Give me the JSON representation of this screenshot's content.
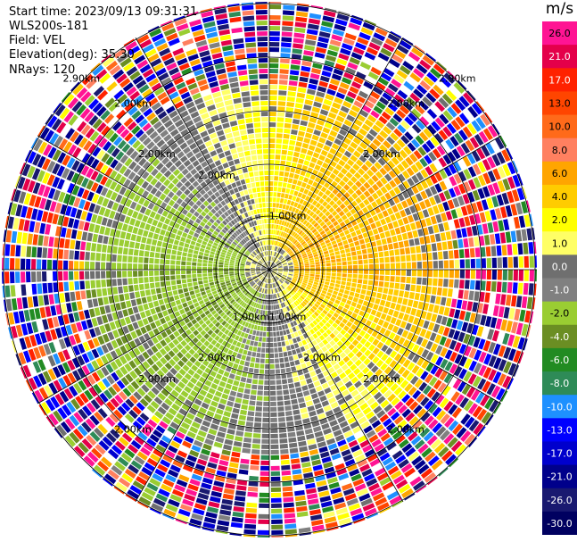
{
  "header": {
    "start_time": "Start time: 2023/09/13 09:31:31",
    "instrument": "WLS200s-181",
    "field": "Field: VEL",
    "elevation": "Elevation(deg): 35.30",
    "nrays": "NRays: 120"
  },
  "colorbar": {
    "unit": "m/s",
    "ticks": [
      "26.0",
      "21.0",
      "17.0",
      "13.0",
      "10.0",
      "8.0",
      "6.0",
      "4.0",
      "2.0",
      "1.0",
      "0.0",
      "-1.0",
      "-2.0",
      "-4.0",
      "-6.0",
      "-8.0",
      "-10.0",
      "-13.0",
      "-17.0",
      "-21.0",
      "-26.0",
      "-30.0"
    ],
    "colors": [
      "#ff1493",
      "#e4004a",
      "#ff2200",
      "#ff4500",
      "#ff6a1a",
      "#ff8060",
      "#ffa500",
      "#ffcc00",
      "#ffff00",
      "#ffff66",
      "#6f6f6f",
      "#808080",
      "#9acd32",
      "#6b8e23",
      "#228b22",
      "#2e8b57",
      "#1e90ff",
      "#0000ff",
      "#0000cd",
      "#00008b",
      "#191970",
      "#000060"
    ]
  },
  "chart_data": {
    "type": "ppi",
    "field": "VEL",
    "units": "m/s",
    "elevation_deg": 35.3,
    "n_rays": 120,
    "range_rings": [
      {
        "label": "1.00km",
        "label_angles_deg": [
          20,
          200,
          160
        ]
      },
      {
        "label": "2.00km",
        "label_angles_deg": [
          330,
          150,
          210
        ]
      },
      {
        "label": "2.00km",
        "label_angles_deg": [
          45,
          135,
          225,
          315
        ]
      },
      {
        "label": "2.00km",
        "label_angles_deg": [
          40,
          140,
          220,
          320
        ]
      },
      {
        "label": "2.90km",
        "label_angles_deg": [
          315,
          45
        ]
      }
    ],
    "velocity_scale": {
      "min": -30.0,
      "max": 26.0
    },
    "pattern_summary": [
      {
        "region": "inner south/east",
        "value_range": [
          1.0,
          6.0
        ]
      },
      {
        "region": "inner west",
        "value_range": [
          -6.0,
          -1.0
        ]
      },
      {
        "region": "inner center",
        "value_range": [
          -1.0,
          1.0
        ]
      },
      {
        "region": "outer rings",
        "value_range": [
          -30.0,
          26.0
        ]
      }
    ]
  }
}
